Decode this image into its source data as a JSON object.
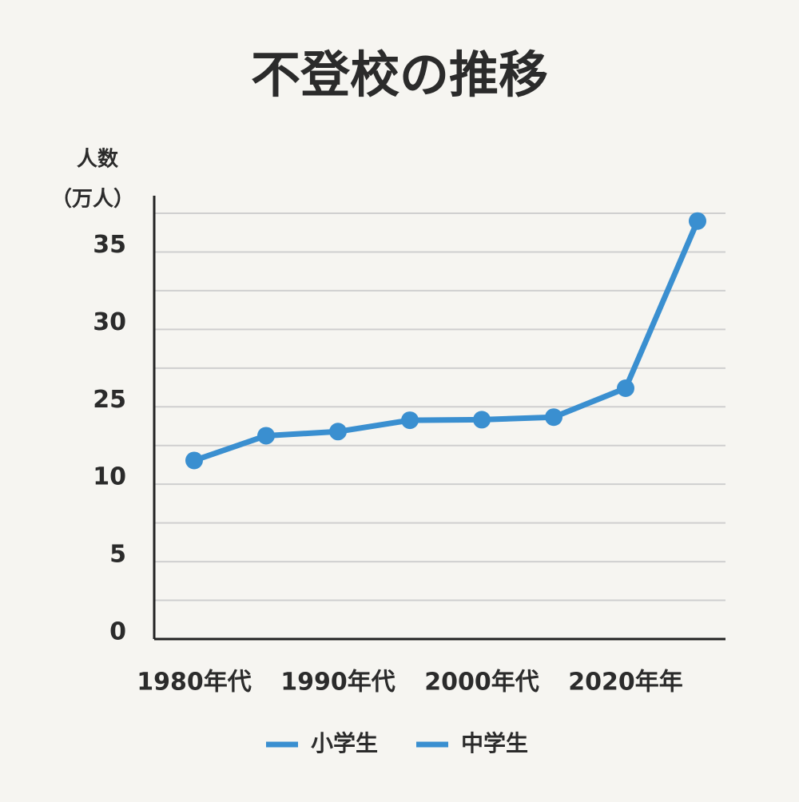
{
  "chart_data": {
    "type": "line",
    "title": "不登校の推移",
    "y_label_lines": [
      "人数",
      "（万人）"
    ],
    "categories": [
      "1980年代",
      null,
      "1990年代",
      null,
      "2000年代",
      null,
      "2020年年",
      null
    ],
    "series": [
      {
        "color": "#3a8fd0",
        "values": [
          14.6,
          19.4,
          20.2,
          22.4,
          22.5,
          23.0,
          26.2,
          37.0
        ]
      }
    ],
    "legend": [
      {
        "name": "小学生",
        "color": "#3a8fd0"
      },
      {
        "name": "中学生",
        "color": "#3a8fd0"
      }
    ],
    "ylim": [
      0,
      37.5
    ],
    "yticks": [
      0,
      5,
      10,
      25,
      30,
      35
    ],
    "grid": true
  }
}
